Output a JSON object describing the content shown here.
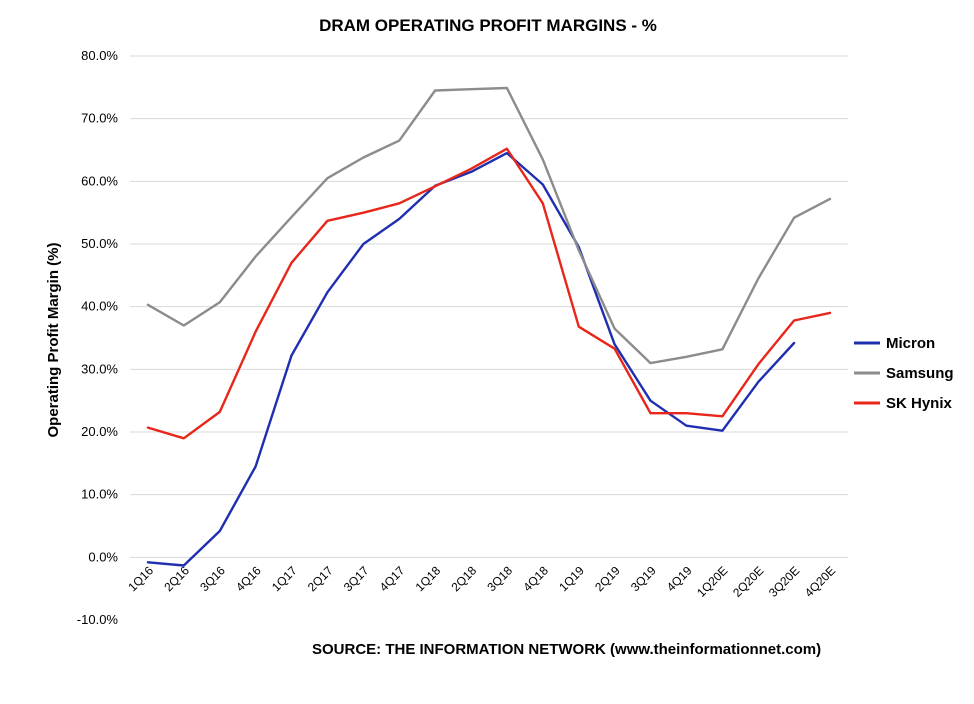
{
  "chart_data": {
    "type": "line",
    "title": "DRAM OPERATING PROFIT MARGINS - %",
    "ylabel": "Operating Profit Margin (%)",
    "xlabel": "",
    "source": "SOURCE: THE INFORMATION NETWORK (www.theinformationnet.com)",
    "x": [
      "1Q16",
      "2Q16",
      "3Q16",
      "4Q16",
      "1Q17",
      "2Q17",
      "3Q17",
      "4Q17",
      "1Q18",
      "2Q18",
      "3Q18",
      "4Q18",
      "1Q19",
      "2Q19",
      "3Q19",
      "4Q19",
      "1Q20E",
      "2Q20E",
      "3Q20E",
      "4Q20E"
    ],
    "ylim": [
      -10,
      80
    ],
    "yticks": [
      -10,
      0,
      10,
      20,
      30,
      40,
      50,
      60,
      70,
      80
    ],
    "ytick_labels": [
      "-10.0%",
      "0.0%",
      "10.0%",
      "20.0%",
      "30.0%",
      "40.0%",
      "50.0%",
      "60.0%",
      "70.0%",
      "80.0%"
    ],
    "grid": true,
    "legend_position": "right",
    "series": [
      {
        "name": "Micron",
        "color": "#1f2fb0",
        "values": [
          -0.8,
          -1.3,
          4.2,
          14.5,
          32.2,
          42.3,
          50.0,
          54.0,
          59.3,
          61.5,
          64.5,
          59.5,
          49.5,
          34.0,
          25.0,
          21.0,
          20.2,
          28.0,
          34.2,
          null
        ]
      },
      {
        "name": "Samsung",
        "color": "#8c8c8c",
        "values": [
          40.3,
          37.0,
          40.7,
          48.0,
          54.3,
          60.5,
          63.8,
          66.5,
          74.5,
          74.7,
          74.9,
          63.5,
          49.0,
          36.5,
          31.0,
          32.0,
          33.2,
          44.5,
          54.2,
          57.2
        ]
      },
      {
        "name": "SK Hynix",
        "color": "#e8261a",
        "values": [
          20.7,
          19.0,
          23.2,
          36.0,
          47.0,
          53.7,
          55.0,
          56.5,
          59.2,
          62.0,
          65.2,
          56.5,
          36.8,
          33.3,
          23.0,
          23.0,
          22.5,
          30.8,
          37.8,
          39.0
        ]
      }
    ]
  }
}
